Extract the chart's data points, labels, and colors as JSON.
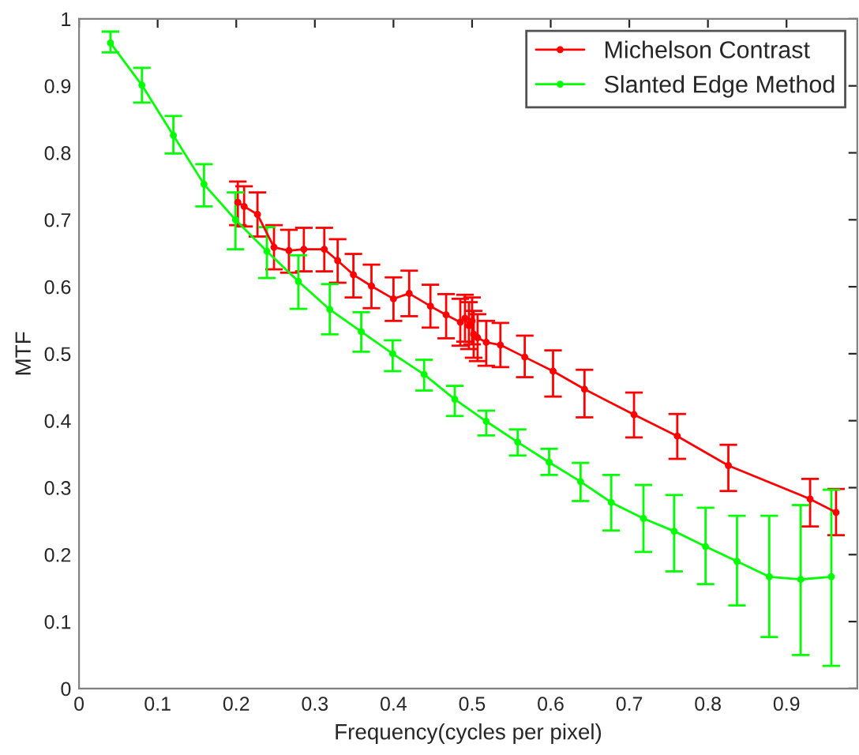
{
  "chart_data": {
    "type": "line",
    "xlabel": "Frequency(cycles per pixel)",
    "ylabel": "MTF",
    "xlim": [
      0,
      0.99
    ],
    "ylim": [
      0,
      1
    ],
    "xticks": [
      0,
      0.1,
      0.2,
      0.3,
      0.4,
      0.5,
      0.6,
      0.7,
      0.8,
      0.9
    ],
    "yticks": [
      0,
      0.1,
      0.2,
      0.3,
      0.4,
      0.5,
      0.6,
      0.7,
      0.8,
      0.9,
      1
    ],
    "grid": false,
    "legend": "top right",
    "marker": "circle",
    "line_style": "solid",
    "series": [
      {
        "name": "Michelson Contrast",
        "color": "#ff0000",
        "x": [
          0.202,
          0.21,
          0.227,
          0.248,
          0.267,
          0.286,
          0.312,
          0.329,
          0.349,
          0.372,
          0.4,
          0.42,
          0.447,
          0.467,
          0.485,
          0.491,
          0.496,
          0.5,
          0.502,
          0.507,
          0.518,
          0.536,
          0.567,
          0.603,
          0.643,
          0.706,
          0.761,
          0.826,
          0.93,
          0.963
        ],
        "values": [
          0.726,
          0.72,
          0.708,
          0.659,
          0.654,
          0.656,
          0.656,
          0.639,
          0.618,
          0.601,
          0.582,
          0.59,
          0.571,
          0.558,
          0.547,
          0.553,
          0.542,
          0.549,
          0.529,
          0.524,
          0.517,
          0.513,
          0.495,
          0.474,
          0.447,
          0.409,
          0.377,
          0.333,
          0.283,
          0.263
        ],
        "errors": [
          [
            0.692,
            0.757
          ],
          [
            0.69,
            0.75
          ],
          [
            0.675,
            0.741
          ],
          [
            0.626,
            0.692
          ],
          [
            0.621,
            0.685
          ],
          [
            0.623,
            0.688
          ],
          [
            0.623,
            0.688
          ],
          [
            0.606,
            0.671
          ],
          [
            0.584,
            0.649
          ],
          [
            0.568,
            0.633
          ],
          [
            0.549,
            0.614
          ],
          [
            0.556,
            0.624
          ],
          [
            0.539,
            0.603
          ],
          [
            0.523,
            0.589
          ],
          [
            0.512,
            0.582
          ],
          [
            0.518,
            0.588
          ],
          [
            0.507,
            0.577
          ],
          [
            0.514,
            0.584
          ],
          [
            0.494,
            0.564
          ],
          [
            0.489,
            0.559
          ],
          [
            0.482,
            0.549
          ],
          [
            0.48,
            0.546
          ],
          [
            0.465,
            0.527
          ],
          [
            0.436,
            0.505
          ],
          [
            0.405,
            0.476
          ],
          [
            0.375,
            0.442
          ],
          [
            0.343,
            0.41
          ],
          [
            0.295,
            0.364
          ],
          [
            0.242,
            0.313
          ],
          [
            0.229,
            0.298
          ]
        ]
      },
      {
        "name": "Slanted Edge Method",
        "color": "#00ff00",
        "x": [
          0.04,
          0.08,
          0.12,
          0.159,
          0.199,
          0.239,
          0.279,
          0.319,
          0.359,
          0.399,
          0.439,
          0.478,
          0.518,
          0.558,
          0.598,
          0.638,
          0.677,
          0.718,
          0.757,
          0.797,
          0.837,
          0.878,
          0.918,
          0.957
        ],
        "values": [
          0.964,
          0.901,
          0.826,
          0.753,
          0.7,
          0.653,
          0.608,
          0.566,
          0.533,
          0.5,
          0.469,
          0.432,
          0.399,
          0.368,
          0.338,
          0.309,
          0.278,
          0.254,
          0.235,
          0.212,
          0.19,
          0.167,
          0.163,
          0.167
        ],
        "errors": [
          [
            0.95,
            0.981
          ],
          [
            0.875,
            0.927
          ],
          [
            0.799,
            0.855
          ],
          [
            0.72,
            0.783
          ],
          [
            0.656,
            0.741
          ],
          [
            0.613,
            0.689
          ],
          [
            0.567,
            0.647
          ],
          [
            0.529,
            0.604
          ],
          [
            0.503,
            0.562
          ],
          [
            0.474,
            0.52
          ],
          [
            0.445,
            0.491
          ],
          [
            0.407,
            0.452
          ],
          [
            0.378,
            0.415
          ],
          [
            0.348,
            0.387
          ],
          [
            0.319,
            0.358
          ],
          [
            0.28,
            0.337
          ],
          [
            0.236,
            0.319
          ],
          [
            0.204,
            0.304
          ],
          [
            0.175,
            0.289
          ],
          [
            0.156,
            0.27
          ],
          [
            0.124,
            0.258
          ],
          [
            0.077,
            0.258
          ],
          [
            0.05,
            0.274
          ],
          [
            0.034,
            0.297
          ]
        ]
      }
    ]
  }
}
